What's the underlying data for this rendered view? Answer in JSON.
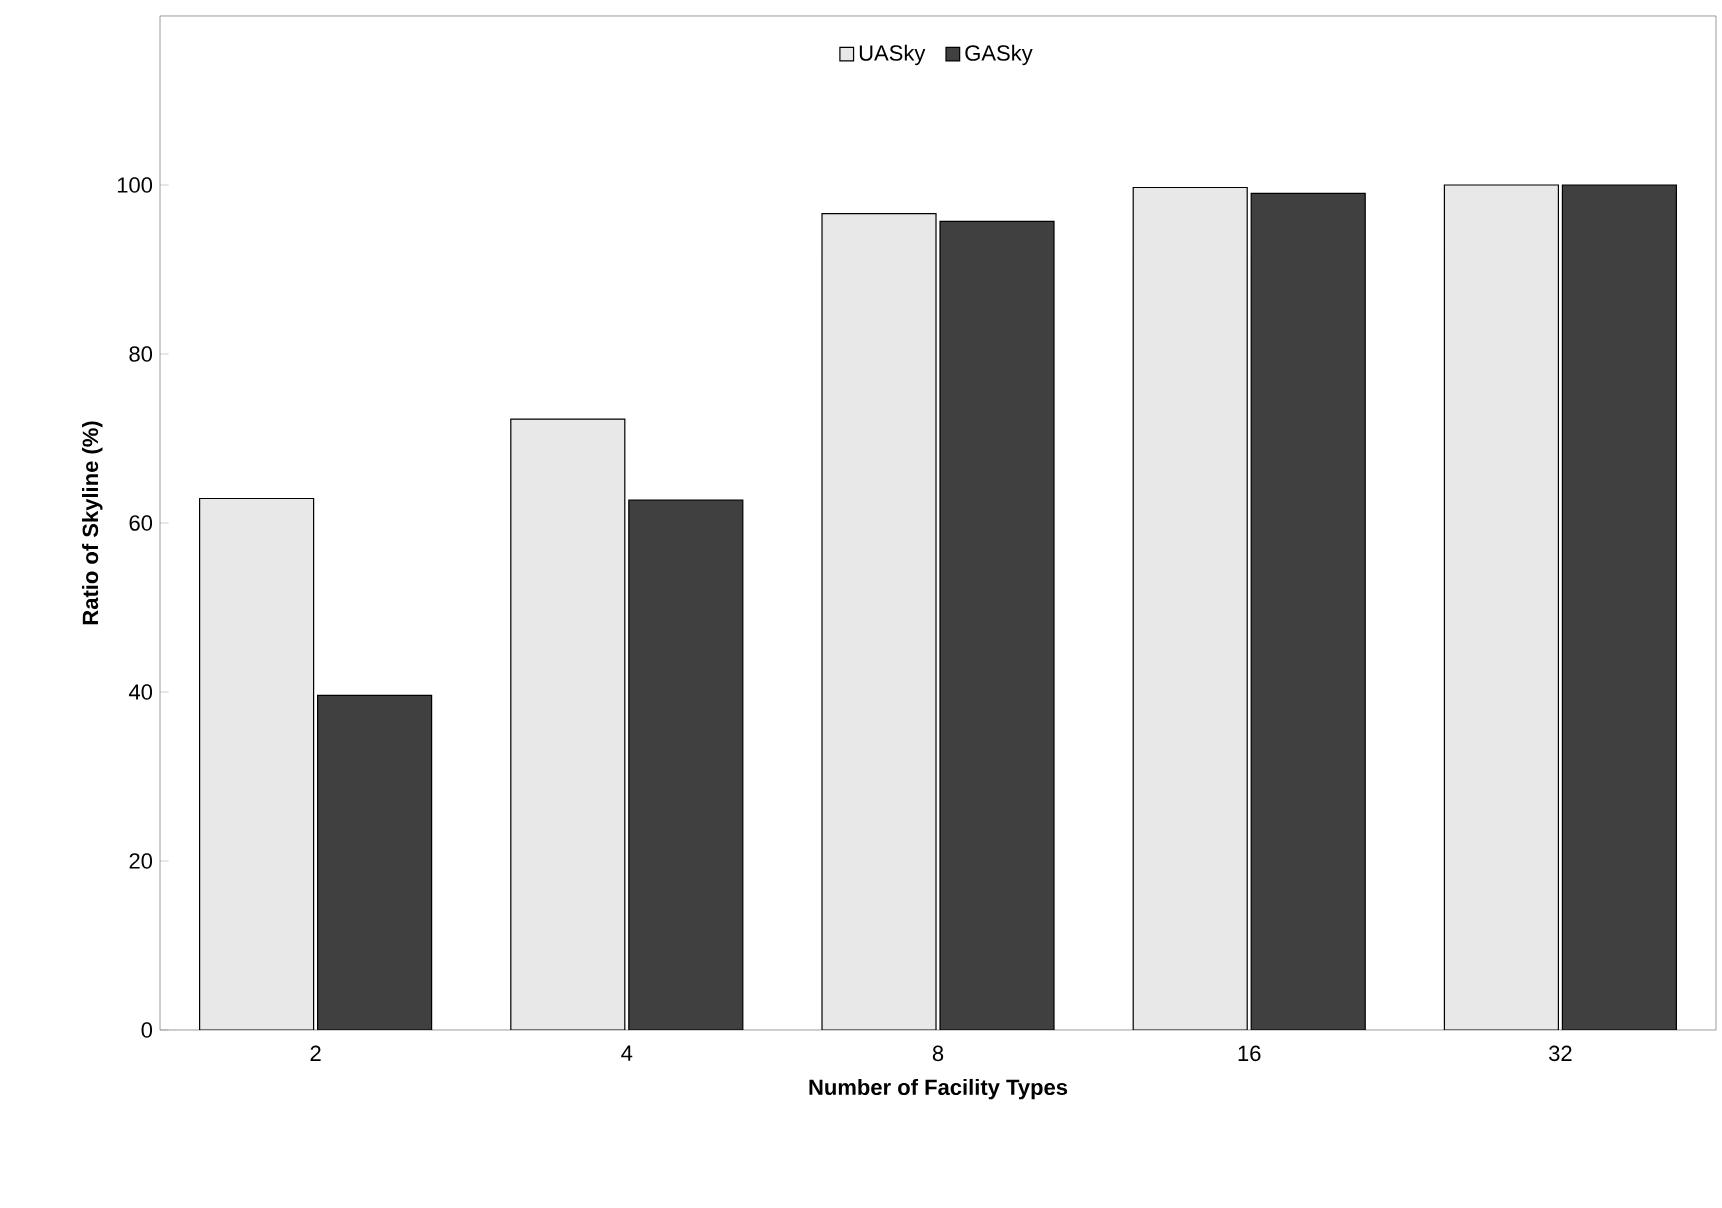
{
  "chart_data": {
    "type": "bar",
    "xlabel": "Number of Facility Types",
    "ylabel": "Ratio of Skyline (%)",
    "categories": [
      "2",
      "4",
      "8",
      "16",
      "32"
    ],
    "series": [
      {
        "name": "UASky",
        "color": "#e8e8e8",
        "values": [
          62.9,
          72.3,
          96.6,
          99.7,
          100
        ]
      },
      {
        "name": "GASky",
        "color": "#404040",
        "values": [
          39.6,
          62.7,
          95.7,
          99.0,
          100
        ]
      }
    ],
    "ylim": [
      0,
      120
    ],
    "yticks": [
      0,
      20,
      40,
      60,
      80,
      100
    ],
    "legend": "top",
    "grid": false
  }
}
